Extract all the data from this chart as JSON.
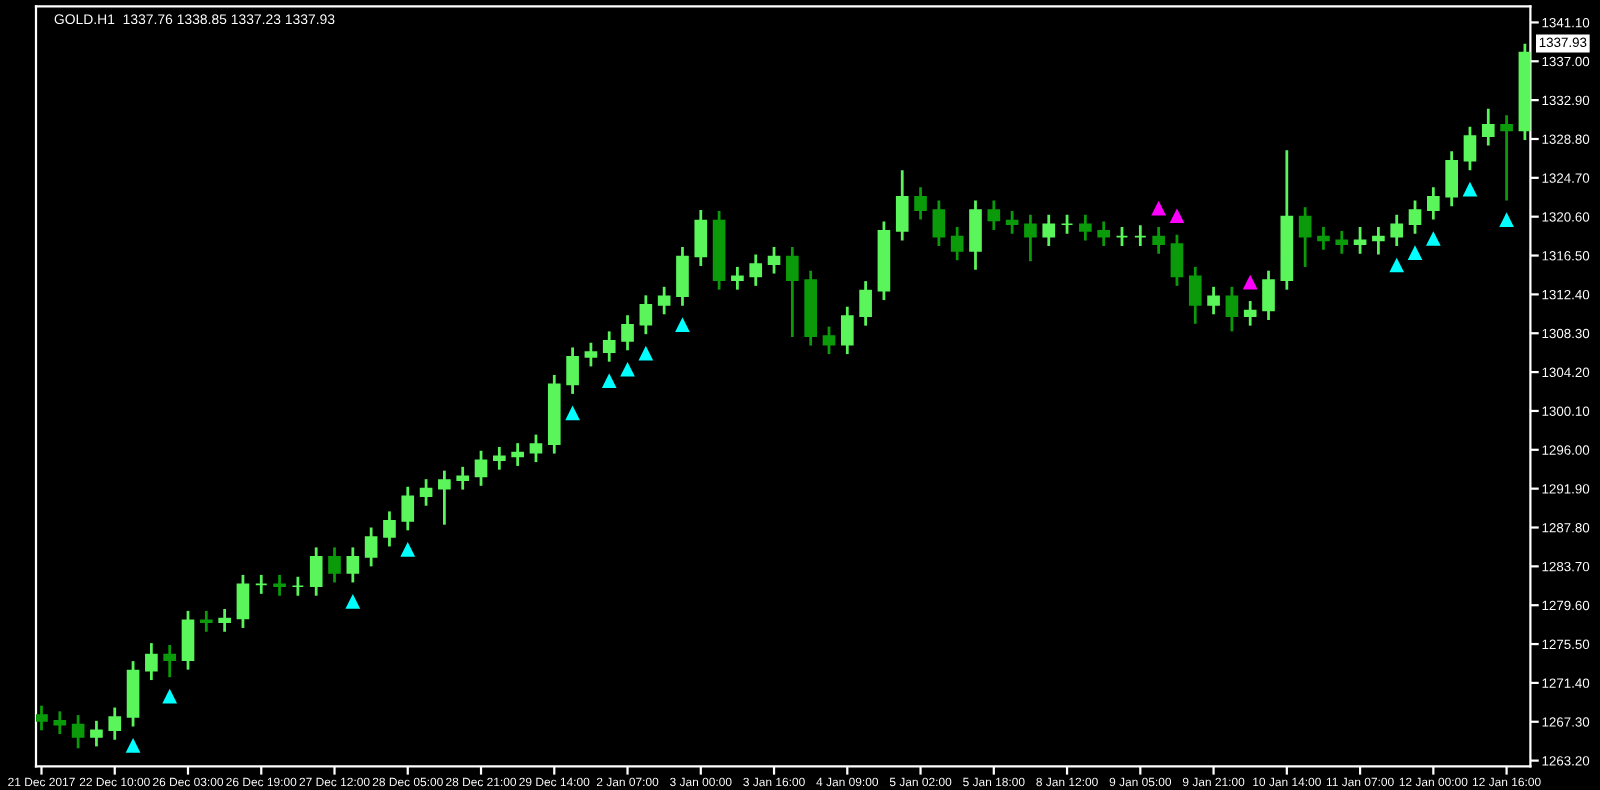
{
  "chart_data": {
    "type": "candlestick",
    "title": "GOLD.H1  1337.76 1338.85 1337.23 1337.93",
    "categories": [
      "21 Dec 2017",
      null,
      null,
      null,
      "22 Dec 10:00",
      null,
      null,
      null,
      "26 Dec 03:00",
      null,
      null,
      null,
      "26 Dec 19:00",
      null,
      null,
      null,
      "27 Dec 12:00",
      null,
      null,
      null,
      "28 Dec 05:00",
      null,
      null,
      null,
      "28 Dec 21:00",
      null,
      null,
      null,
      "29 Dec 14:00",
      null,
      null,
      null,
      "2 Jan 07:00",
      null,
      null,
      null,
      "3 Jan 00:00",
      null,
      null,
      null,
      "3 Jan 16:00",
      null,
      null,
      null,
      "4 Jan 09:00",
      null,
      null,
      null,
      "5 Jan 02:00",
      null,
      null,
      null,
      "5 Jan 18:00",
      null,
      null,
      null,
      "8 Jan 12:00",
      null,
      null,
      null,
      "9 Jan 05:00",
      null,
      null,
      null,
      "9 Jan 21:00",
      null,
      null,
      null,
      "10 Jan 14:00",
      null,
      null,
      null,
      "11 Jan 07:00",
      null,
      null,
      null,
      "12 Jan 00:00",
      null,
      null,
      null,
      "12 Jan 16:00",
      null
    ],
    "ohlc": [
      [
        1268.0,
        1269.0,
        1266.4,
        1267.4
      ],
      [
        1267.4,
        1268.4,
        1266.0,
        1267.0
      ],
      [
        1267.0,
        1268.0,
        1264.5,
        1265.7
      ],
      [
        1265.7,
        1267.4,
        1264.7,
        1266.4
      ],
      [
        1266.4,
        1268.8,
        1265.4,
        1267.8
      ],
      [
        1267.8,
        1273.7,
        1266.8,
        1272.7
      ],
      [
        1272.7,
        1275.6,
        1271.7,
        1274.4
      ],
      [
        1274.4,
        1275.4,
        1272.0,
        1273.8
      ],
      [
        1273.8,
        1279.0,
        1272.8,
        1278.0
      ],
      [
        1278.0,
        1279.0,
        1276.8,
        1277.8
      ],
      [
        1277.8,
        1279.2,
        1276.8,
        1278.2
      ],
      [
        1278.2,
        1282.8,
        1277.2,
        1281.8
      ],
      [
        1281.8,
        1282.8,
        1280.8,
        1281.8
      ],
      [
        1281.8,
        1282.8,
        1280.6,
        1281.6
      ],
      [
        1281.6,
        1282.6,
        1280.6,
        1281.6
      ],
      [
        1281.6,
        1285.7,
        1280.6,
        1284.7
      ],
      [
        1284.7,
        1285.7,
        1282.0,
        1283.0
      ],
      [
        1283.0,
        1285.7,
        1282.0,
        1284.7
      ],
      [
        1284.7,
        1287.8,
        1283.7,
        1286.8
      ],
      [
        1286.8,
        1289.5,
        1285.8,
        1288.5
      ],
      [
        1288.5,
        1292.1,
        1287.5,
        1291.1
      ],
      [
        1291.1,
        1292.9,
        1290.1,
        1291.9
      ],
      [
        1291.9,
        1293.8,
        1288.1,
        1292.8
      ],
      [
        1292.8,
        1294.2,
        1291.8,
        1293.2
      ],
      [
        1293.2,
        1295.9,
        1292.2,
        1294.9
      ],
      [
        1294.9,
        1296.3,
        1293.9,
        1295.3
      ],
      [
        1295.3,
        1296.7,
        1294.3,
        1295.7
      ],
      [
        1295.7,
        1297.6,
        1294.7,
        1296.6
      ],
      [
        1296.6,
        1303.9,
        1295.6,
        1302.9
      ],
      [
        1302.9,
        1306.8,
        1301.9,
        1305.8
      ],
      [
        1305.8,
        1307.3,
        1304.8,
        1306.3
      ],
      [
        1306.3,
        1308.5,
        1305.3,
        1307.5
      ],
      [
        1307.5,
        1310.2,
        1306.5,
        1309.2
      ],
      [
        1309.2,
        1312.3,
        1308.2,
        1311.3
      ],
      [
        1311.3,
        1313.2,
        1310.3,
        1312.2
      ],
      [
        1312.2,
        1317.4,
        1311.2,
        1316.4
      ],
      [
        1316.4,
        1321.3,
        1315.4,
        1320.2
      ],
      [
        1320.2,
        1321.2,
        1312.9,
        1313.9
      ],
      [
        1313.9,
        1315.3,
        1312.9,
        1314.3
      ],
      [
        1314.3,
        1316.6,
        1313.3,
        1315.6
      ],
      [
        1315.6,
        1317.4,
        1314.6,
        1316.4
      ],
      [
        1316.4,
        1317.4,
        1307.9,
        1313.9
      ],
      [
        1313.9,
        1314.9,
        1307.0,
        1308.0
      ],
      [
        1308.0,
        1309.0,
        1306.1,
        1307.1
      ],
      [
        1307.1,
        1311.1,
        1306.1,
        1310.1
      ],
      [
        1310.1,
        1313.8,
        1309.1,
        1312.8
      ],
      [
        1312.8,
        1320.1,
        1311.8,
        1319.1
      ],
      [
        1319.1,
        1325.5,
        1318.1,
        1322.7
      ],
      [
        1322.7,
        1323.7,
        1320.3,
        1321.3
      ],
      [
        1321.3,
        1322.3,
        1317.5,
        1318.5
      ],
      [
        1318.5,
        1319.5,
        1316.0,
        1317.0
      ],
      [
        1317.0,
        1322.3,
        1315.0,
        1321.3
      ],
      [
        1321.3,
        1322.3,
        1319.2,
        1320.2
      ],
      [
        1320.2,
        1321.2,
        1318.8,
        1319.8
      ],
      [
        1319.8,
        1320.8,
        1315.9,
        1318.5
      ],
      [
        1318.5,
        1320.8,
        1317.5,
        1319.8
      ],
      [
        1319.8,
        1320.8,
        1318.8,
        1319.8
      ],
      [
        1319.8,
        1320.8,
        1318.1,
        1319.1
      ],
      [
        1319.1,
        1320.1,
        1317.5,
        1318.5
      ],
      [
        1318.5,
        1319.5,
        1317.5,
        1318.5
      ],
      [
        1318.5,
        1319.7,
        1317.5,
        1318.5
      ],
      [
        1318.5,
        1319.5,
        1316.7,
        1317.7
      ],
      [
        1317.7,
        1318.7,
        1313.3,
        1314.3
      ],
      [
        1314.3,
        1315.3,
        1309.3,
        1311.3
      ],
      [
        1311.3,
        1313.2,
        1310.3,
        1312.2
      ],
      [
        1312.2,
        1313.2,
        1308.5,
        1310.1
      ],
      [
        1310.1,
        1311.7,
        1309.1,
        1310.7
      ],
      [
        1310.7,
        1314.9,
        1309.7,
        1313.9
      ],
      [
        1313.9,
        1327.6,
        1312.9,
        1320.6
      ],
      [
        1320.6,
        1321.6,
        1315.3,
        1318.5
      ],
      [
        1318.5,
        1319.5,
        1317.1,
        1318.1
      ],
      [
        1318.1,
        1319.1,
        1316.7,
        1317.7
      ],
      [
        1317.7,
        1319.5,
        1316.7,
        1318.1
      ],
      [
        1318.1,
        1319.5,
        1316.6,
        1318.5
      ],
      [
        1318.5,
        1320.8,
        1317.5,
        1319.8
      ],
      [
        1319.8,
        1322.3,
        1318.8,
        1321.3
      ],
      [
        1321.3,
        1323.7,
        1320.3,
        1322.7
      ],
      [
        1322.7,
        1327.5,
        1321.7,
        1326.5
      ],
      [
        1326.5,
        1330.1,
        1325.5,
        1329.1
      ],
      [
        1329.1,
        1332.0,
        1328.1,
        1330.3
      ],
      [
        1330.3,
        1331.3,
        1322.3,
        1329.7
      ],
      [
        1329.7,
        1338.85,
        1328.7,
        1337.93
      ]
    ],
    "colors": [
      "#0a9a0a",
      "#0a9a0a",
      "#0a9a0a",
      "#5af55a",
      "#5af55a",
      "#5af55a",
      "#5af55a",
      "#0a9a0a",
      "#5af55a",
      "#0a9a0a",
      "#5af55a",
      "#5af55a",
      "#5af55a",
      "#0a9a0a",
      "#5af55a",
      "#5af55a",
      "#0a9a0a",
      "#5af55a",
      "#5af55a",
      "#5af55a",
      "#5af55a",
      "#5af55a",
      "#5af55a",
      "#5af55a",
      "#5af55a",
      "#5af55a",
      "#5af55a",
      "#5af55a",
      "#5af55a",
      "#5af55a",
      "#5af55a",
      "#5af55a",
      "#5af55a",
      "#5af55a",
      "#5af55a",
      "#5af55a",
      "#5af55a",
      "#0a9a0a",
      "#5af55a",
      "#5af55a",
      "#5af55a",
      "#0a9a0a",
      "#0a9a0a",
      "#0a9a0a",
      "#5af55a",
      "#5af55a",
      "#5af55a",
      "#5af55a",
      "#0a9a0a",
      "#0a9a0a",
      "#0a9a0a",
      "#5af55a",
      "#0a9a0a",
      "#0a9a0a",
      "#0a9a0a",
      "#5af55a",
      "#5af55a",
      "#0a9a0a",
      "#0a9a0a",
      "#5af55a",
      "#5af55a",
      "#0a9a0a",
      "#0a9a0a",
      "#0a9a0a",
      "#5af55a",
      "#0a9a0a",
      "#5af55a",
      "#5af55a",
      "#5af55a",
      "#0a9a0a",
      "#0a9a0a",
      "#0a9a0a",
      "#5af55a",
      "#5af55a",
      "#5af55a",
      "#5af55a",
      "#5af55a",
      "#5af55a",
      "#5af55a",
      "#5af55a",
      "#0a9a0a",
      "#5af55a"
    ],
    "series": [
      {
        "type": "scatter",
        "marker": "triangle",
        "color": "#00ffff",
        "values": [
          null,
          null,
          null,
          null,
          null,
          1264.8,
          null,
          1270.0,
          null,
          null,
          null,
          null,
          null,
          null,
          null,
          null,
          null,
          1280.0,
          null,
          null,
          1285.5,
          null,
          null,
          null,
          null,
          null,
          null,
          null,
          null,
          1299.9,
          null,
          1303.3,
          1304.5,
          1306.2,
          null,
          1309.2,
          null,
          null,
          null,
          null,
          null,
          null,
          null,
          null,
          null,
          null,
          null,
          null,
          null,
          null,
          null,
          null,
          null,
          null,
          null,
          null,
          null,
          null,
          null,
          null,
          null,
          null,
          null,
          null,
          null,
          null,
          null,
          null,
          null,
          null,
          null,
          null,
          null,
          null,
          1315.5,
          1316.8,
          1318.3,
          null,
          1323.5,
          null,
          1320.3,
          null
        ]
      },
      {
        "type": "scatter",
        "marker": "triangle",
        "color": "#ff00ff",
        "values": [
          null,
          null,
          null,
          null,
          null,
          null,
          null,
          null,
          null,
          null,
          null,
          null,
          null,
          null,
          null,
          null,
          null,
          null,
          null,
          null,
          null,
          null,
          null,
          null,
          null,
          null,
          null,
          null,
          null,
          null,
          null,
          null,
          null,
          null,
          null,
          null,
          null,
          null,
          null,
          null,
          null,
          null,
          null,
          null,
          null,
          null,
          null,
          null,
          null,
          null,
          null,
          null,
          null,
          null,
          null,
          null,
          null,
          null,
          null,
          null,
          null,
          1321.5,
          1320.7,
          null,
          null,
          null,
          1313.7,
          null,
          null,
          null,
          null,
          null,
          null,
          null,
          null,
          null,
          null,
          null,
          null,
          null,
          null,
          null
        ]
      }
    ],
    "ylim": [
      1262.6,
      1342.8
    ],
    "yticks": [
      {
        "value": 1341.1,
        "label": "1341.10"
      },
      {
        "value": 1337.0,
        "label": "1337.00"
      },
      {
        "value": 1332.9,
        "label": "1332.90"
      },
      {
        "value": 1328.8,
        "label": "1328.80"
      },
      {
        "value": 1324.7,
        "label": "1324.70"
      },
      {
        "value": 1320.6,
        "label": "1320.60"
      },
      {
        "value": 1316.5,
        "label": "1316.50"
      },
      {
        "value": 1312.4,
        "label": "1312.40"
      },
      {
        "value": 1308.3,
        "label": "1308.30"
      },
      {
        "value": 1304.2,
        "label": "1304.20"
      },
      {
        "value": 1300.1,
        "label": "1300.10"
      },
      {
        "value": 1296.0,
        "label": "1296.00"
      },
      {
        "value": 1291.9,
        "label": "1291.90"
      },
      {
        "value": 1287.8,
        "label": "1287.80"
      },
      {
        "value": 1283.7,
        "label": "1283.70"
      },
      {
        "value": 1279.6,
        "label": "1279.60"
      },
      {
        "value": 1275.5,
        "label": "1275.50"
      },
      {
        "value": 1271.4,
        "label": "1271.40"
      },
      {
        "value": 1267.3,
        "label": "1267.30"
      },
      {
        "value": 1263.2,
        "label": "1263.20"
      }
    ],
    "annotations": [
      "1337.93"
    ]
  }
}
